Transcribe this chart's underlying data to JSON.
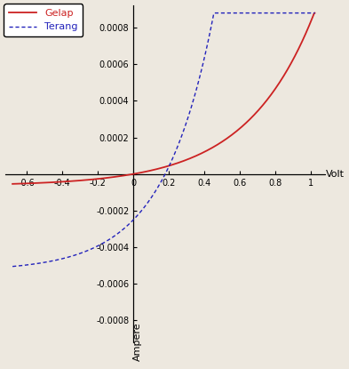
{
  "title": "",
  "xlabel": "Volt",
  "ylabel": "Ampere",
  "xlim": [
    -0.72,
    1.08
  ],
  "ylim": [
    -0.00092,
    0.00092
  ],
  "xticks": [
    -0.6,
    -0.4,
    -0.2,
    0,
    0.2,
    0.4,
    0.6,
    0.8,
    1.0
  ],
  "yticks": [
    -0.0008,
    -0.0006,
    -0.0004,
    -0.0002,
    0,
    0.0002,
    0.0004,
    0.0006,
    0.0008
  ],
  "gelap_color": "#cc2222",
  "terang_color": "#2222bb",
  "background_color": "#ede8df",
  "legend_labels": [
    "Gelap",
    "Terang"
  ],
  "font_size": 8
}
